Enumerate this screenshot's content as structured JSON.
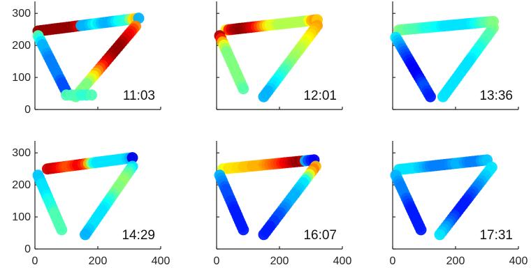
{
  "chart_data": {
    "type": "scatter",
    "layout": "2x3 small multiples",
    "x_range": [
      0,
      400
    ],
    "y_range": [
      0,
      320
    ],
    "x_ticks": [
      "0",
      "200",
      "400"
    ],
    "y_ticks": [
      "0",
      "100",
      "200",
      "300"
    ],
    "colormap": "jet",
    "panels": [
      {
        "label": "11:03",
        "show_y_ticks": true,
        "show_x_ticks": false,
        "segments": [
          {
            "name": "top",
            "from": [
              10,
              245
            ],
            "to": [
              330,
              285
            ],
            "n": 36,
            "levels": [
              0.98,
              0.98,
              0.98,
              0.98,
              0.98,
              0.98,
              0.98,
              0.98,
              0.98,
              0.98,
              0.98,
              0.98,
              0.98,
              0.95,
              0.92,
              0.3,
              0.3,
              0.3,
              0.32,
              0.35,
              0.38,
              0.35,
              0.32,
              0.3,
              0.3,
              0.3,
              0.32,
              0.35,
              0.38,
              0.4,
              0.4,
              0.42,
              0.5,
              0.65,
              0.68,
              0.3
            ]
          },
          {
            "name": "right",
            "from": [
              320,
              260
            ],
            "to": [
              130,
              40
            ],
            "n": 28,
            "levels": [
              0.75,
              0.8,
              0.85,
              0.88,
              0.9,
              0.92,
              0.95,
              0.97,
              0.98,
              0.98,
              0.98,
              0.97,
              0.95,
              0.92,
              0.9,
              0.85,
              0.8,
              0.75,
              0.7,
              0.65,
              0.6,
              0.55,
              0.5,
              0.5,
              0.5,
              0.5,
              0.5,
              0.48
            ]
          },
          {
            "name": "left",
            "from": [
              10,
              230
            ],
            "to": [
              100,
              55
            ],
            "n": 20,
            "levels": [
              0.45,
              0.4,
              0.35,
              0.3,
              0.3,
              0.3,
              0.28,
              0.26,
              0.25,
              0.25,
              0.25,
              0.25,
              0.25,
              0.25,
              0.25,
              0.22,
              0.2,
              0.2,
              0.2,
              0.2
            ]
          },
          {
            "name": "bottom",
            "from": [
              100,
              45
            ],
            "to": [
              180,
              45
            ],
            "n": 6,
            "levels": [
              0.45,
              0.45,
              0.45,
              0.42,
              0.42,
              0.45
            ]
          }
        ]
      },
      {
        "label": "12:01",
        "show_y_ticks": false,
        "show_x_ticks": false,
        "segments": [
          {
            "name": "top",
            "from": [
              30,
              248
            ],
            "to": [
              320,
              280
            ],
            "n": 34,
            "levels": [
              0.65,
              0.85,
              0.92,
              0.95,
              0.97,
              0.98,
              0.98,
              0.97,
              0.95,
              0.92,
              0.9,
              0.85,
              0.8,
              0.75,
              0.7,
              0.65,
              0.6,
              0.6,
              0.58,
              0.55,
              0.55,
              0.55,
              0.55,
              0.55,
              0.55,
              0.55,
              0.55,
              0.55,
              0.55,
              0.55,
              0.62,
              0.7,
              0.72,
              0.68
            ]
          },
          {
            "name": "right",
            "from": [
              320,
              262
            ],
            "to": [
              150,
              40
            ],
            "n": 26,
            "levels": [
              0.72,
              0.7,
              0.68,
              0.66,
              0.64,
              0.62,
              0.6,
              0.58,
              0.56,
              0.55,
              0.54,
              0.53,
              0.52,
              0.5,
              0.48,
              0.46,
              0.44,
              0.42,
              0.4,
              0.38,
              0.36,
              0.35,
              0.33,
              0.3,
              0.3,
              0.3
            ]
          },
          {
            "name": "left",
            "from": [
              10,
              230
            ],
            "to": [
              85,
              65
            ],
            "n": 18,
            "levels": [
              0.95,
              0.85,
              0.7,
              0.6,
              0.55,
              0.5,
              0.5,
              0.5,
              0.5,
              0.5,
              0.5,
              0.5,
              0.5,
              0.5,
              0.5,
              0.5,
              0.48,
              0.46
            ]
          }
        ]
      },
      {
        "label": "13:36",
        "show_y_ticks": false,
        "show_x_ticks": false,
        "segments": [
          {
            "name": "top",
            "from": [
              20,
              248
            ],
            "to": [
              320,
              275
            ],
            "n": 32,
            "levels": [
              0.5,
              0.48,
              0.48,
              0.46,
              0.46,
              0.45,
              0.45,
              0.44,
              0.42,
              0.4,
              0.4,
              0.4,
              0.38,
              0.38,
              0.36,
              0.35,
              0.35,
              0.35,
              0.35,
              0.35,
              0.35,
              0.35,
              0.35,
              0.35,
              0.36,
              0.38,
              0.4,
              0.42,
              0.45,
              0.46,
              0.48,
              0.5
            ]
          },
          {
            "name": "right",
            "from": [
              320,
              255
            ],
            "to": [
              160,
              40
            ],
            "n": 26,
            "levels": [
              0.5,
              0.48,
              0.46,
              0.45,
              0.45,
              0.44,
              0.42,
              0.4,
              0.4,
              0.38,
              0.38,
              0.36,
              0.35,
              0.35,
              0.35,
              0.35,
              0.35,
              0.35,
              0.35,
              0.35,
              0.35,
              0.35,
              0.35,
              0.35,
              0.35,
              0.35
            ]
          },
          {
            "name": "left",
            "from": [
              10,
              225
            ],
            "to": [
              120,
              40
            ],
            "n": 22,
            "levels": [
              0.35,
              0.32,
              0.3,
              0.28,
              0.25,
              0.22,
              0.2,
              0.18,
              0.16,
              0.14,
              0.13,
              0.12,
              0.12,
              0.12,
              0.13,
              0.15,
              0.18,
              0.2,
              0.2,
              0.18,
              0.16,
              0.15
            ]
          }
        ]
      },
      {
        "label": "14:29",
        "show_y_ticks": true,
        "show_x_ticks": true,
        "segments": [
          {
            "name": "top",
            "from": [
              40,
              250
            ],
            "to": [
              310,
              285
            ],
            "n": 32,
            "levels": [
              0.92,
              0.92,
              0.92,
              0.9,
              0.88,
              0.85,
              0.82,
              0.8,
              0.8,
              0.82,
              0.85,
              0.88,
              0.88,
              0.85,
              0.8,
              0.7,
              0.5,
              0.38,
              0.35,
              0.35,
              0.35,
              0.35,
              0.35,
              0.35,
              0.35,
              0.35,
              0.35,
              0.35,
              0.35,
              0.33,
              0.3,
              0.1
            ]
          },
          {
            "name": "right",
            "from": [
              310,
              258
            ],
            "to": [
              160,
              45
            ],
            "n": 26,
            "levels": [
              0.35,
              0.4,
              0.45,
              0.48,
              0.5,
              0.52,
              0.52,
              0.5,
              0.5,
              0.5,
              0.48,
              0.45,
              0.42,
              0.4,
              0.38,
              0.36,
              0.35,
              0.35,
              0.35,
              0.35,
              0.35,
              0.35,
              0.35,
              0.33,
              0.32,
              0.3
            ]
          },
          {
            "name": "left",
            "from": [
              10,
              230
            ],
            "to": [
              85,
              60
            ],
            "n": 20,
            "levels": [
              0.32,
              0.32,
              0.33,
              0.35,
              0.35,
              0.35,
              0.35,
              0.36,
              0.38,
              0.4,
              0.4,
              0.4,
              0.42,
              0.45,
              0.45,
              0.45,
              0.45,
              0.45,
              0.45,
              0.45
            ]
          }
        ]
      },
      {
        "label": "16:07",
        "show_y_ticks": false,
        "show_x_ticks": true,
        "segments": [
          {
            "name": "top",
            "from": [
              20,
              250
            ],
            "to": [
              310,
              278
            ],
            "n": 32,
            "levels": [
              0.6,
              0.62,
              0.65,
              0.65,
              0.65,
              0.66,
              0.66,
              0.68,
              0.68,
              0.68,
              0.7,
              0.7,
              0.7,
              0.7,
              0.72,
              0.74,
              0.76,
              0.78,
              0.8,
              0.82,
              0.85,
              0.88,
              0.9,
              0.92,
              0.95,
              0.97,
              0.98,
              0.95,
              0.3,
              0.2,
              0.15,
              0.12
            ]
          },
          {
            "name": "right",
            "from": [
              315,
              258
            ],
            "to": [
              150,
              45
            ],
            "n": 26,
            "levels": [
              0.7,
              0.75,
              0.7,
              0.6,
              0.5,
              0.4,
              0.35,
              0.35,
              0.33,
              0.32,
              0.3,
              0.3,
              0.3,
              0.3,
              0.28,
              0.26,
              0.25,
              0.22,
              0.2,
              0.2,
              0.18,
              0.18,
              0.15,
              0.15,
              0.15,
              0.15
            ]
          },
          {
            "name": "left",
            "from": [
              10,
              230
            ],
            "to": [
              85,
              60
            ],
            "n": 20,
            "levels": [
              0.3,
              0.28,
              0.26,
              0.25,
              0.22,
              0.2,
              0.2,
              0.2,
              0.2,
              0.18,
              0.18,
              0.16,
              0.15,
              0.15,
              0.15,
              0.15,
              0.15,
              0.15,
              0.15,
              0.15
            ]
          }
        ]
      },
      {
        "label": "17:31",
        "show_y_ticks": false,
        "show_x_ticks": true,
        "segments": [
          {
            "name": "top",
            "from": [
              20,
              248
            ],
            "to": [
              300,
              278
            ],
            "n": 32,
            "levels": [
              0.35,
              0.35,
              0.35,
              0.35,
              0.35,
              0.35,
              0.35,
              0.33,
              0.32,
              0.3,
              0.28,
              0.26,
              0.25,
              0.25,
              0.25,
              0.25,
              0.25,
              0.25,
              0.26,
              0.28,
              0.3,
              0.3,
              0.3,
              0.28,
              0.26,
              0.25,
              0.25,
              0.25,
              0.25,
              0.28,
              0.3,
              0.32
            ]
          },
          {
            "name": "right",
            "from": [
              315,
              255
            ],
            "to": [
              150,
              45
            ],
            "n": 26,
            "levels": [
              0.35,
              0.35,
              0.35,
              0.33,
              0.32,
              0.3,
              0.28,
              0.26,
              0.25,
              0.22,
              0.2,
              0.18,
              0.16,
              0.15,
              0.15,
              0.15,
              0.15,
              0.15,
              0.18,
              0.2,
              0.22,
              0.25,
              0.28,
              0.3,
              0.32,
              0.35
            ]
          },
          {
            "name": "left",
            "from": [
              10,
              230
            ],
            "to": [
              90,
              60
            ],
            "n": 20,
            "levels": [
              0.3,
              0.3,
              0.28,
              0.26,
              0.25,
              0.25,
              0.25,
              0.25,
              0.22,
              0.2,
              0.18,
              0.16,
              0.15,
              0.15,
              0.15,
              0.15,
              0.15,
              0.15,
              0.15,
              0.15
            ]
          }
        ]
      }
    ]
  }
}
